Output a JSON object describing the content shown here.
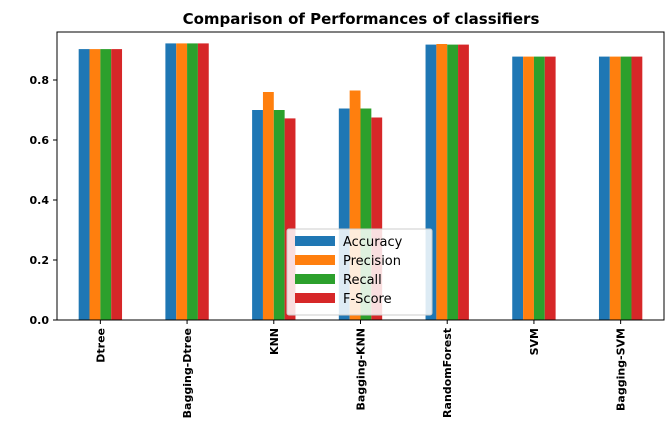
{
  "chart_data": {
    "type": "bar",
    "title": "Comparison of Performances of classifiers",
    "xlabel": "",
    "ylabel": "",
    "categories": [
      "Dtree",
      "Bagging-Dtree",
      "KNN",
      "Bagging-KNN",
      "RandomForest",
      "SVM",
      "Bagging-SVM"
    ],
    "series": [
      {
        "name": "Accuracy",
        "color": "#1f77b4",
        "values": [
          0.903,
          0.922,
          0.7,
          0.705,
          0.918,
          0.878,
          0.878
        ]
      },
      {
        "name": "Precision",
        "color": "#ff7f0e",
        "values": [
          0.903,
          0.922,
          0.76,
          0.765,
          0.92,
          0.878,
          0.878
        ]
      },
      {
        "name": "Recall",
        "color": "#2ca02c",
        "values": [
          0.903,
          0.922,
          0.7,
          0.705,
          0.918,
          0.878,
          0.878
        ]
      },
      {
        "name": "F-Score",
        "color": "#d62728",
        "values": [
          0.903,
          0.922,
          0.672,
          0.675,
          0.918,
          0.878,
          0.878
        ]
      }
    ],
    "ylim": [
      0.0,
      0.96
    ],
    "yticks": [
      0.0,
      0.2,
      0.4,
      0.6,
      0.8
    ],
    "ytick_labels": [
      "0.0",
      "0.2",
      "0.4",
      "0.6",
      "0.8"
    ],
    "grid": false,
    "legend_position": "lower-center"
  }
}
